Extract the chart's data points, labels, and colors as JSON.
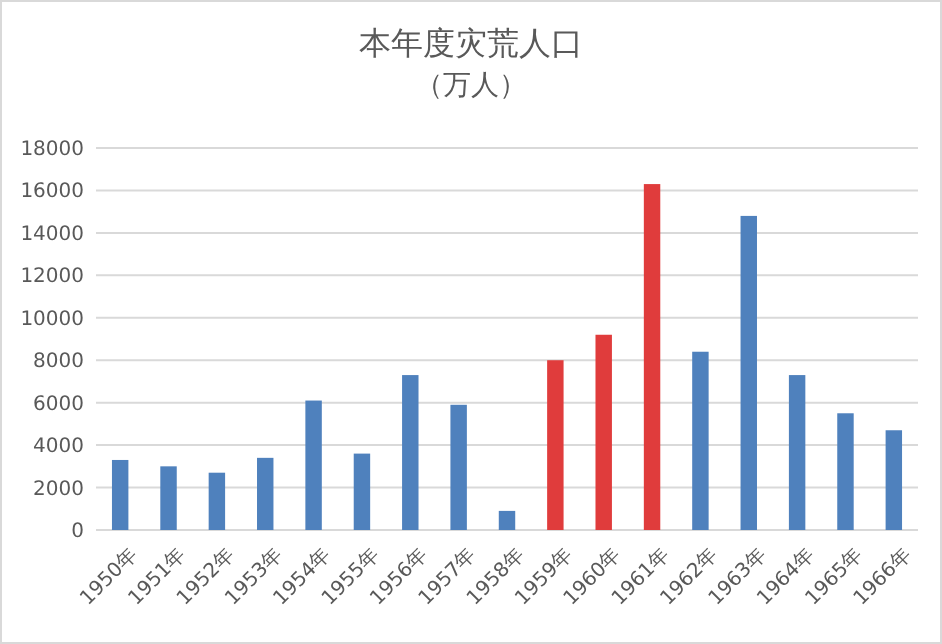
{
  "chart_data": {
    "type": "bar",
    "title": "本年度灾荒人口",
    "subtitle": "（万人）",
    "categories": [
      "1950年",
      "1951年",
      "1952年",
      "1953年",
      "1954年",
      "1955年",
      "1956年",
      "1957年",
      "1958年",
      "1959年",
      "1960年",
      "1961年",
      "1962年",
      "1963年",
      "1964年",
      "1965年",
      "1966年"
    ],
    "values": [
      3300,
      3000,
      2700,
      3400,
      6100,
      3600,
      7300,
      5900,
      900,
      8000,
      9200,
      16300,
      8400,
      14800,
      7300,
      5500,
      4700
    ],
    "colors": [
      "#4f81bd",
      "#4f81bd",
      "#4f81bd",
      "#4f81bd",
      "#4f81bd",
      "#4f81bd",
      "#4f81bd",
      "#4f81bd",
      "#4f81bd",
      "#e03c3c",
      "#e03c3c",
      "#e03c3c",
      "#4f81bd",
      "#4f81bd",
      "#4f81bd",
      "#4f81bd",
      "#4f81bd"
    ],
    "ylim": [
      0,
      18000
    ],
    "yticks": [
      0,
      2000,
      4000,
      6000,
      8000,
      10000,
      12000,
      14000,
      16000,
      18000
    ],
    "grid": "y"
  }
}
